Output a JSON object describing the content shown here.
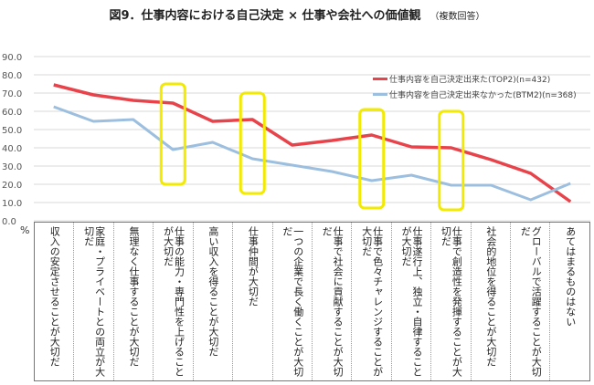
{
  "chart_data": {
    "type": "line",
    "title": "図9．仕事内容における自己決定 × 仕事や会社への価値観",
    "subtitle": "（複数回答）",
    "ylabel": "%",
    "ylim": [
      0,
      90
    ],
    "yticks": [
      "0.0",
      "10.0",
      "20.0",
      "30.0",
      "40.0",
      "50.0",
      "60.0",
      "70.0",
      "80.0",
      "90.0"
    ],
    "grid": true,
    "legend_position": "top-right",
    "categories": [
      "収入の安定させることが大切だ",
      "家庭・プライベートとの両立が大切だ",
      "無理なく仕事することが大切だ",
      "仕事の能力・専門性を上げることが大切だ",
      "高い収入を得ることが大切だ",
      "仕事仲間が大切だ",
      "一つの企業で長く働くことが大切だ",
      "仕事で社会に貢献することが大切だ",
      "仕事で色々チャレンジすることが大切だ",
      "仕事遂行上、独立・自律することが大切だ",
      "仕事で創造性を発揮することが大切だ",
      "社会的地位を得ることが大切だ",
      "グローバルで活躍することが大切だ",
      "あてはまるものはない"
    ],
    "series": [
      {
        "name": "仕事内容を自己決定出来た(TOP2)(n=432)",
        "color": "#e8434a",
        "values": [
          74.5,
          69.0,
          66.0,
          64.5,
          54.5,
          55.5,
          41.5,
          44.0,
          47.0,
          40.5,
          40.0,
          33.5,
          26.0,
          10.5
        ]
      },
      {
        "name": "仕事内容を自己決定出来なかった(BTM2)(n=368)",
        "color": "#9dbfdf",
        "values": [
          62.5,
          54.5,
          55.5,
          39.0,
          43.0,
          34.0,
          30.5,
          27.0,
          22.0,
          25.0,
          19.5,
          19.5,
          11.5,
          20.5
        ]
      }
    ],
    "highlighted_categories": [
      3,
      5,
      8,
      10
    ],
    "highlight_color": "#f2ea00"
  }
}
